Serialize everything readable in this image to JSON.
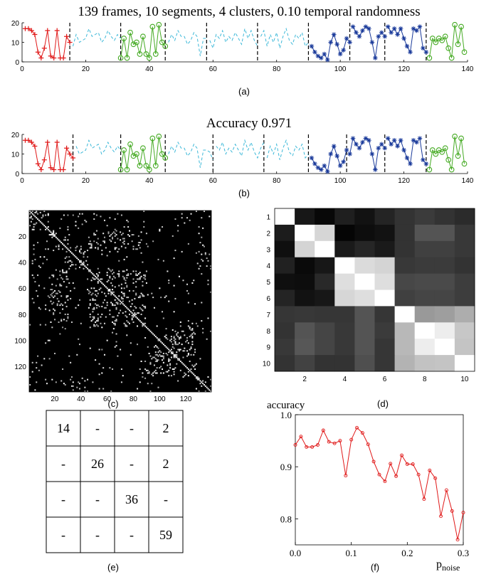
{
  "figure": {
    "title_a": "139 frames, 10 segments, 4 clusters, 0.10 temporal randomness",
    "title_b": "Accuracy 0.971",
    "captions": [
      "(a)",
      "(b)",
      "(c)",
      "(d)",
      "(e)",
      "(f)"
    ],
    "colors": {
      "red": "#e01818",
      "cyan": "#3cb8d8",
      "green": "#44aa22",
      "blue": "#1a3a9a",
      "plot_f": "#e01818"
    }
  },
  "chart_data": [
    {
      "id": "a",
      "type": "line",
      "title": "139 frames, 10 segments, 4 clusters, 0.10 temporal randomness",
      "xlim": [
        0,
        140
      ],
      "ylim": [
        0,
        20
      ],
      "xticks": [
        "0",
        "20",
        "40",
        "60",
        "80",
        "100",
        "120",
        "140"
      ],
      "yticks": [
        "0",
        "10",
        "20"
      ],
      "boundaries": [
        15,
        31,
        45,
        58,
        74,
        90,
        103,
        114,
        127
      ],
      "segments": [
        {
          "start": 1,
          "end": 15,
          "cluster": 1,
          "marker": "plus",
          "values": [
            17,
            17,
            16,
            14,
            5,
            2,
            7,
            16,
            3,
            2,
            16,
            2,
            2,
            13,
            10
          ]
        },
        {
          "start": 16,
          "end": 31,
          "cluster": 2,
          "marker": "none",
          "values": [
            8,
            14,
            10,
            11,
            12,
            17,
            13,
            14,
            15,
            10,
            12,
            16,
            13,
            11,
            14,
            12
          ]
        },
        {
          "start": 31,
          "end": 45,
          "cluster": 3,
          "marker": "circle",
          "values": [
            2,
            12,
            2,
            15,
            9,
            10,
            4,
            13,
            4,
            2,
            18,
            4,
            19,
            10,
            8
          ]
        },
        {
          "start": 46,
          "end": 58,
          "cluster": 2,
          "marker": "none",
          "values": [
            10,
            14,
            11,
            16,
            13,
            13,
            9,
            11,
            15,
            13,
            3,
            12,
            12
          ]
        },
        {
          "start": 59,
          "end": 74,
          "cluster": 2,
          "marker": "none",
          "values": [
            11,
            7,
            14,
            12,
            16,
            10,
            13,
            11,
            15,
            12,
            9,
            17,
            12,
            16,
            11,
            8
          ]
        },
        {
          "start": 75,
          "end": 90,
          "cluster": 2,
          "marker": "none",
          "values": [
            13,
            16,
            8,
            14,
            10,
            15,
            7,
            13,
            17,
            11,
            9,
            14,
            12,
            15,
            8,
            10
          ]
        },
        {
          "start": 91,
          "end": 103,
          "cluster": 4,
          "marker": "star",
          "values": [
            8,
            5,
            3,
            2,
            4,
            1,
            10,
            14,
            9,
            4,
            6,
            12,
            10
          ]
        },
        {
          "start": 104,
          "end": 114,
          "cluster": 4,
          "marker": "star",
          "values": [
            18,
            15,
            13,
            16,
            18,
            17,
            10,
            2,
            13,
            15,
            13
          ]
        },
        {
          "start": 115,
          "end": 127,
          "cluster": 4,
          "marker": "star",
          "values": [
            18,
            15,
            17,
            14,
            17,
            12,
            8,
            5,
            17,
            16,
            18,
            7,
            5
          ]
        },
        {
          "start": 128,
          "end": 139,
          "cluster": 3,
          "marker": "circle",
          "values": [
            2,
            12,
            10,
            12,
            11,
            13,
            7,
            2,
            19,
            9,
            18,
            5
          ]
        }
      ]
    },
    {
      "id": "b",
      "type": "line",
      "title": "Accuracy 0.971",
      "xlim": [
        0,
        140
      ],
      "ylim": [
        0,
        20
      ],
      "xticks": [
        "0",
        "20",
        "40",
        "60",
        "80",
        "100",
        "120",
        "140"
      ],
      "yticks": [
        "0",
        "10",
        "20"
      ],
      "boundaries": [
        16,
        31,
        45,
        60,
        76,
        90,
        102,
        114,
        127
      ],
      "segments": [
        {
          "start": 1,
          "end": 16,
          "cluster": 1,
          "marker": "plus",
          "values": [
            17,
            17,
            16,
            14,
            5,
            2,
            7,
            16,
            3,
            2,
            16,
            2,
            2,
            13,
            10,
            8
          ]
        },
        {
          "start": 17,
          "end": 31,
          "cluster": 2,
          "marker": "none",
          "values": [
            14,
            10,
            11,
            12,
            17,
            13,
            14,
            15,
            10,
            12,
            16,
            13,
            11,
            14,
            12
          ]
        },
        {
          "start": 31,
          "end": 45,
          "cluster": 3,
          "marker": "circle",
          "values": [
            2,
            12,
            2,
            15,
            9,
            10,
            4,
            13,
            4,
            2,
            18,
            4,
            19,
            10,
            8
          ]
        },
        {
          "start": 46,
          "end": 60,
          "cluster": 2,
          "marker": "none",
          "values": [
            10,
            14,
            11,
            16,
            13,
            13,
            9,
            11,
            15,
            13,
            3,
            12,
            12,
            11,
            7
          ]
        },
        {
          "start": 61,
          "end": 76,
          "cluster": 2,
          "marker": "none",
          "values": [
            14,
            12,
            16,
            10,
            13,
            11,
            15,
            12,
            9,
            17,
            12,
            16,
            11,
            8,
            13,
            16
          ]
        },
        {
          "start": 77,
          "end": 90,
          "cluster": 2,
          "marker": "none",
          "values": [
            8,
            14,
            10,
            15,
            7,
            13,
            17,
            11,
            9,
            14,
            12,
            15,
            8,
            10
          ]
        },
        {
          "start": 91,
          "end": 102,
          "cluster": 4,
          "marker": "star",
          "values": [
            8,
            5,
            3,
            2,
            4,
            1,
            10,
            14,
            9,
            4,
            6,
            12
          ]
        },
        {
          "start": 103,
          "end": 114,
          "cluster": 4,
          "marker": "star",
          "values": [
            10,
            18,
            15,
            13,
            16,
            18,
            17,
            10,
            2,
            13,
            15,
            13
          ]
        },
        {
          "start": 115,
          "end": 127,
          "cluster": 4,
          "marker": "star",
          "values": [
            18,
            15,
            17,
            14,
            17,
            12,
            8,
            5,
            17,
            16,
            18,
            7,
            5
          ]
        },
        {
          "start": 128,
          "end": 139,
          "cluster": 3,
          "marker": "circle",
          "values": [
            2,
            12,
            10,
            12,
            11,
            13,
            7,
            2,
            19,
            9,
            18,
            5
          ]
        }
      ]
    },
    {
      "id": "c",
      "type": "heatmap",
      "size": 139,
      "xticks": [
        "20",
        "40",
        "60",
        "80",
        "100",
        "120"
      ],
      "yticks": [
        "20",
        "40",
        "60",
        "80",
        "100",
        "120"
      ],
      "colormap": "gray",
      "background": "black"
    },
    {
      "id": "d",
      "type": "heatmap",
      "rows": [
        "1",
        "2",
        "3",
        "4",
        "5",
        "6",
        "7",
        "8",
        "9",
        "10"
      ],
      "xticks": [
        "2",
        "4",
        "6",
        "8",
        "10"
      ],
      "colormap": "gray",
      "values": [
        [
          1.0,
          0.09,
          0.03,
          0.12,
          0.07,
          0.14,
          0.2,
          0.23,
          0.2,
          0.17
        ],
        [
          0.11,
          1.0,
          0.84,
          0.02,
          0.05,
          0.07,
          0.2,
          0.33,
          0.33,
          0.22
        ],
        [
          0.06,
          0.83,
          1.0,
          0.1,
          0.15,
          0.1,
          0.2,
          0.25,
          0.25,
          0.22
        ],
        [
          0.13,
          0.04,
          0.09,
          1.0,
          0.86,
          0.83,
          0.22,
          0.23,
          0.23,
          0.2
        ],
        [
          0.06,
          0.05,
          0.16,
          0.87,
          1.0,
          0.87,
          0.28,
          0.29,
          0.29,
          0.24
        ],
        [
          0.14,
          0.07,
          0.09,
          0.84,
          0.87,
          1.0,
          0.25,
          0.27,
          0.27,
          0.24
        ],
        [
          0.21,
          0.22,
          0.21,
          0.21,
          0.33,
          0.21,
          1.0,
          0.6,
          0.62,
          0.68
        ],
        [
          0.2,
          0.33,
          0.27,
          0.22,
          0.33,
          0.23,
          0.72,
          1.0,
          0.93,
          0.78
        ],
        [
          0.22,
          0.34,
          0.27,
          0.22,
          0.33,
          0.21,
          0.72,
          0.93,
          1.0,
          0.77
        ],
        [
          0.2,
          0.26,
          0.2,
          0.2,
          0.31,
          0.21,
          0.7,
          0.76,
          0.77,
          1.0
        ]
      ]
    },
    {
      "id": "e",
      "type": "table",
      "rows": [
        [
          "14",
          "-",
          "-",
          "2"
        ],
        [
          "-",
          "26",
          "-",
          "2"
        ],
        [
          "-",
          "-",
          "36",
          "-"
        ],
        [
          "-",
          "-",
          "-",
          "59"
        ]
      ]
    },
    {
      "id": "f",
      "type": "line",
      "ylabel": "accuracy",
      "xlabel": "p",
      "xlabel_sub": "noise",
      "xlim": [
        0,
        0.3
      ],
      "ylim": [
        0.75,
        1.0
      ],
      "xticks": [
        "0.0",
        "0.1",
        "0.2",
        "0.3"
      ],
      "yticks": [
        "0.8",
        "0.9",
        "1.0"
      ],
      "series": [
        {
          "values": [
            0.942,
            0.958,
            0.938,
            0.938,
            0.942,
            0.97,
            0.948,
            0.945,
            0.95,
            0.883,
            0.952,
            0.975,
            0.965,
            0.943,
            0.91,
            0.885,
            0.872,
            0.906,
            0.882,
            0.922,
            0.905,
            0.905,
            0.885,
            0.838,
            0.893,
            0.878,
            0.805,
            0.855,
            0.815,
            0.76,
            0.812
          ]
        }
      ],
      "x": [
        0,
        0.01,
        0.02,
        0.03,
        0.04,
        0.05,
        0.06,
        0.07,
        0.08,
        0.09,
        0.1,
        0.11,
        0.12,
        0.13,
        0.14,
        0.15,
        0.16,
        0.17,
        0.18,
        0.19,
        0.2,
        0.21,
        0.22,
        0.23,
        0.24,
        0.25,
        0.26,
        0.27,
        0.28,
        0.29,
        0.3
      ]
    }
  ]
}
